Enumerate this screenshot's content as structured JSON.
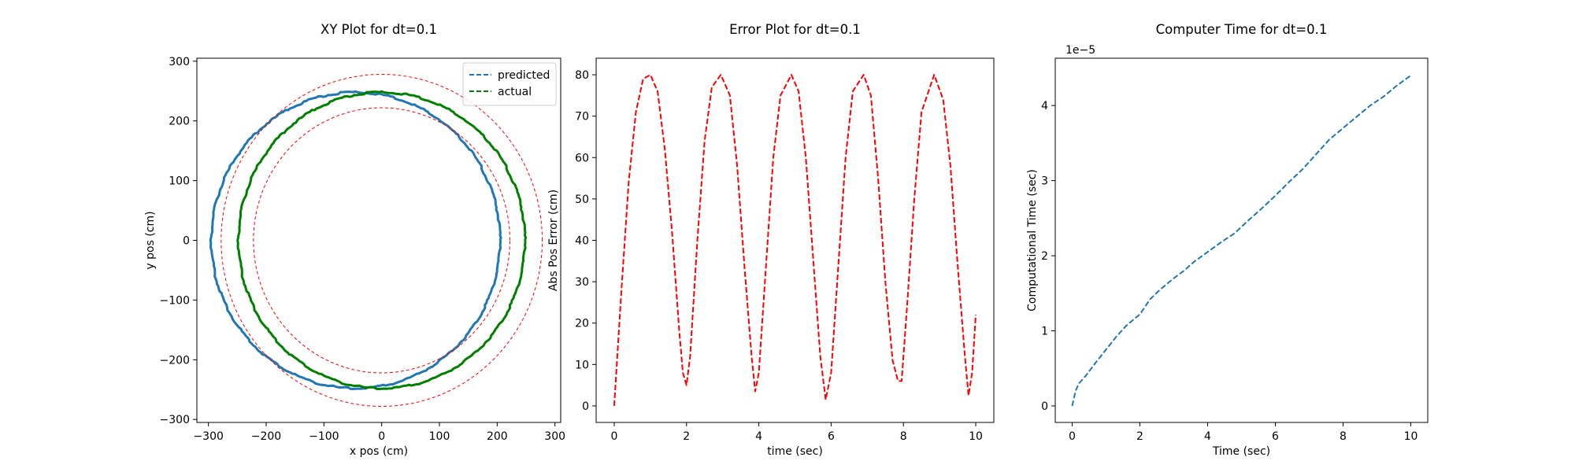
{
  "chart_data": [
    {
      "type": "scatter",
      "title": "XY Plot for dt=0.1",
      "xlabel": "x pos (cm)",
      "ylabel": "y pos (cm)",
      "xlim": [
        -320,
        310
      ],
      "ylim": [
        -305,
        305
      ],
      "xticks": [
        -300,
        -200,
        -100,
        0,
        100,
        200,
        300
      ],
      "yticks": [
        -300,
        -200,
        -100,
        0,
        100,
        200,
        300
      ],
      "legend_position": "top-right",
      "series": [
        {
          "name": "predicted",
          "color": "#1f77b4",
          "style": "dashed",
          "shape": "circle",
          "center": [
            -45,
            0
          ],
          "radius_x": 250,
          "radius_y": 248,
          "noisy": true
        },
        {
          "name": "actual",
          "color": "#008000",
          "style": "dashed",
          "shape": "circle",
          "center": [
            0,
            0
          ],
          "radius_x": 248,
          "radius_y": 248,
          "noisy": true
        },
        {
          "name": "",
          "color": "#ff0000",
          "style": "dashed",
          "shape": "circle",
          "center": [
            0,
            0
          ],
          "radius_x": 278,
          "radius_y": 278
        },
        {
          "name": "",
          "color": "#ff0000",
          "style": "dashed",
          "shape": "circle",
          "center": [
            0,
            0
          ],
          "radius_x": 222,
          "radius_y": 222
        }
      ]
    },
    {
      "type": "line",
      "title": "Error Plot for dt=0.1",
      "xlabel": "time (sec)",
      "ylabel": "Abs Pos Error (cm)",
      "xlim": [
        -0.5,
        10.5
      ],
      "ylim": [
        -4,
        84
      ],
      "xticks": [
        0,
        2,
        4,
        6,
        8,
        10
      ],
      "yticks": [
        0,
        10,
        20,
        30,
        40,
        50,
        60,
        70,
        80
      ],
      "series": [
        {
          "name": "",
          "color": "#ff0000",
          "style": "dashed",
          "x": [
            0,
            0.2,
            0.4,
            0.6,
            0.8,
            1.0,
            1.2,
            1.4,
            1.6,
            1.8,
            1.9,
            2.0,
            2.1,
            2.3,
            2.5,
            2.7,
            2.95,
            3.2,
            3.4,
            3.6,
            3.8,
            3.9,
            4.0,
            4.2,
            4.4,
            4.6,
            4.9,
            5.1,
            5.3,
            5.5,
            5.7,
            5.85,
            6.0,
            6.2,
            6.4,
            6.6,
            6.9,
            7.1,
            7.3,
            7.5,
            7.7,
            7.85,
            7.95,
            8.1,
            8.3,
            8.5,
            8.85,
            9.1,
            9.3,
            9.5,
            9.7,
            9.8,
            9.9,
            10.0
          ],
          "y": [
            0,
            28,
            54,
            71,
            79,
            80,
            76,
            62,
            42,
            18,
            8,
            5,
            12,
            40,
            64,
            77,
            80,
            75,
            58,
            34,
            12,
            3.5,
            8,
            34,
            60,
            75,
            80,
            76,
            60,
            36,
            12,
            1.5,
            8,
            34,
            60,
            76,
            80,
            75,
            55,
            30,
            11,
            6,
            6,
            24,
            50,
            71,
            80,
            74,
            58,
            34,
            12,
            2.5,
            8,
            22
          ]
        }
      ]
    },
    {
      "type": "line",
      "title": "Computer Time for dt=0.1",
      "xlabel": "Time (sec)",
      "ylabel": "Computational Time (sec)",
      "offset_text": "1e−5",
      "xlim": [
        -0.5,
        10.5
      ],
      "ylim": [
        -0.22,
        4.63
      ],
      "xticks": [
        0,
        2,
        4,
        6,
        8,
        10
      ],
      "yticks": [
        0,
        1,
        2,
        3,
        4
      ],
      "series": [
        {
          "name": "",
          "color": "#1f77b4",
          "style": "dashed",
          "x": [
            0,
            0.1,
            0.2,
            0.4,
            0.7,
            1.0,
            1.3,
            1.6,
            2.0,
            2.3,
            2.6,
            3.0,
            3.3,
            3.6,
            4.0,
            4.4,
            4.8,
            5.2,
            5.6,
            6.0,
            6.4,
            6.8,
            7.2,
            7.6,
            8.0,
            8.4,
            8.8,
            9.2,
            9.6,
            10.0
          ],
          "y": [
            0,
            0.2,
            0.3,
            0.4,
            0.58,
            0.75,
            0.92,
            1.07,
            1.22,
            1.42,
            1.55,
            1.7,
            1.8,
            1.92,
            2.05,
            2.18,
            2.3,
            2.47,
            2.63,
            2.8,
            2.98,
            3.15,
            3.35,
            3.55,
            3.7,
            3.85,
            4.0,
            4.12,
            4.27,
            4.4
          ]
        }
      ]
    }
  ]
}
